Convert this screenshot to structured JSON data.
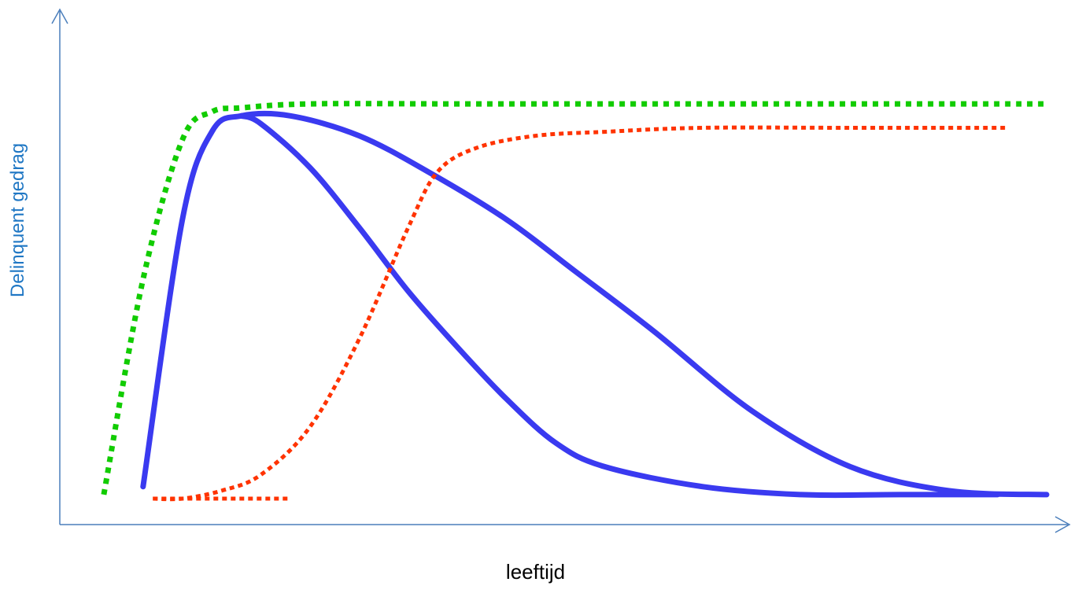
{
  "labels": {
    "y_axis": "Delinquent gedrag",
    "x_axis": "leeftijd"
  },
  "colors": {
    "axis": "#4a7ebb",
    "y_label": "#1f77c4",
    "x_label": "#000000",
    "solid_curves": "#3a3af0",
    "green_dotted": "#11cc00",
    "red_dotted": "#ff3300"
  },
  "chart_data": {
    "type": "line",
    "title": "",
    "xlabel": "leeftijd",
    "ylabel": "Delinquent gedrag",
    "ylim": [
      0,
      100
    ],
    "ticks": "none",
    "series": [
      {
        "style": "solid-blue-thick",
        "x": [
          8,
          12,
          15,
          18,
          23,
          30,
          37,
          45,
          52,
          60,
          70,
          80,
          90,
          100
        ],
        "y": [
          3,
          70,
          92,
          96,
          96,
          91,
          82,
          70,
          57,
          42,
          22,
          8,
          2,
          1
        ]
      },
      {
        "style": "solid-blue-thick",
        "x": [
          18,
          20,
          25,
          30,
          35,
          40,
          45,
          50,
          55,
          65,
          75,
          85,
          95
        ],
        "y": [
          96,
          94,
          83,
          68,
          52,
          38,
          25,
          14,
          8,
          3,
          1,
          1,
          1
        ]
      },
      {
        "style": "green-dotted",
        "x": [
          4,
          8,
          12,
          15,
          18,
          25,
          40,
          60,
          80,
          100
        ],
        "y": [
          1,
          55,
          90,
          97,
          98,
          99,
          99,
          99,
          99,
          99
        ]
      },
      {
        "style": "red-dotted",
        "x": [
          9,
          12,
          16,
          20,
          25,
          30,
          35,
          38,
          42,
          48,
          55,
          65,
          80,
          96
        ],
        "y": [
          0,
          0,
          2,
          6,
          18,
          40,
          68,
          82,
          88,
          91,
          92,
          93,
          93,
          93
        ]
      },
      {
        "style": "red-dotted",
        "x": [
          9,
          23
        ],
        "y": [
          0,
          0
        ]
      }
    ]
  }
}
